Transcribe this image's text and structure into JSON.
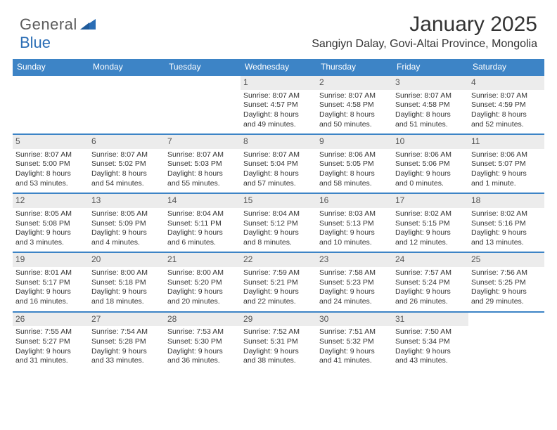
{
  "logo": {
    "text_part1": "General",
    "text_part2": "Blue",
    "color_gray": "#5b5b5b",
    "color_blue": "#2a6db5"
  },
  "title": "January 2025",
  "location": "Sangiyn Dalay, Govi-Altai Province, Mongolia",
  "colors": {
    "header_bg": "#3d84c6",
    "header_text": "#ffffff",
    "daynum_bg": "#ececec",
    "border": "#3d84c6",
    "text": "#333333"
  },
  "day_headers": [
    "Sunday",
    "Monday",
    "Tuesday",
    "Wednesday",
    "Thursday",
    "Friday",
    "Saturday"
  ],
  "weeks": [
    [
      {
        "empty": true
      },
      {
        "empty": true
      },
      {
        "empty": true
      },
      {
        "day": "1",
        "sunrise": "8:07 AM",
        "sunset": "4:57 PM",
        "daylight1": "Daylight: 8 hours",
        "daylight2": "and 49 minutes."
      },
      {
        "day": "2",
        "sunrise": "8:07 AM",
        "sunset": "4:58 PM",
        "daylight1": "Daylight: 8 hours",
        "daylight2": "and 50 minutes."
      },
      {
        "day": "3",
        "sunrise": "8:07 AM",
        "sunset": "4:58 PM",
        "daylight1": "Daylight: 8 hours",
        "daylight2": "and 51 minutes."
      },
      {
        "day": "4",
        "sunrise": "8:07 AM",
        "sunset": "4:59 PM",
        "daylight1": "Daylight: 8 hours",
        "daylight2": "and 52 minutes."
      }
    ],
    [
      {
        "day": "5",
        "sunrise": "8:07 AM",
        "sunset": "5:00 PM",
        "daylight1": "Daylight: 8 hours",
        "daylight2": "and 53 minutes."
      },
      {
        "day": "6",
        "sunrise": "8:07 AM",
        "sunset": "5:02 PM",
        "daylight1": "Daylight: 8 hours",
        "daylight2": "and 54 minutes."
      },
      {
        "day": "7",
        "sunrise": "8:07 AM",
        "sunset": "5:03 PM",
        "daylight1": "Daylight: 8 hours",
        "daylight2": "and 55 minutes."
      },
      {
        "day": "8",
        "sunrise": "8:07 AM",
        "sunset": "5:04 PM",
        "daylight1": "Daylight: 8 hours",
        "daylight2": "and 57 minutes."
      },
      {
        "day": "9",
        "sunrise": "8:06 AM",
        "sunset": "5:05 PM",
        "daylight1": "Daylight: 8 hours",
        "daylight2": "and 58 minutes."
      },
      {
        "day": "10",
        "sunrise": "8:06 AM",
        "sunset": "5:06 PM",
        "daylight1": "Daylight: 9 hours",
        "daylight2": "and 0 minutes."
      },
      {
        "day": "11",
        "sunrise": "8:06 AM",
        "sunset": "5:07 PM",
        "daylight1": "Daylight: 9 hours",
        "daylight2": "and 1 minute."
      }
    ],
    [
      {
        "day": "12",
        "sunrise": "8:05 AM",
        "sunset": "5:08 PM",
        "daylight1": "Daylight: 9 hours",
        "daylight2": "and 3 minutes."
      },
      {
        "day": "13",
        "sunrise": "8:05 AM",
        "sunset": "5:09 PM",
        "daylight1": "Daylight: 9 hours",
        "daylight2": "and 4 minutes."
      },
      {
        "day": "14",
        "sunrise": "8:04 AM",
        "sunset": "5:11 PM",
        "daylight1": "Daylight: 9 hours",
        "daylight2": "and 6 minutes."
      },
      {
        "day": "15",
        "sunrise": "8:04 AM",
        "sunset": "5:12 PM",
        "daylight1": "Daylight: 9 hours",
        "daylight2": "and 8 minutes."
      },
      {
        "day": "16",
        "sunrise": "8:03 AM",
        "sunset": "5:13 PM",
        "daylight1": "Daylight: 9 hours",
        "daylight2": "and 10 minutes."
      },
      {
        "day": "17",
        "sunrise": "8:02 AM",
        "sunset": "5:15 PM",
        "daylight1": "Daylight: 9 hours",
        "daylight2": "and 12 minutes."
      },
      {
        "day": "18",
        "sunrise": "8:02 AM",
        "sunset": "5:16 PM",
        "daylight1": "Daylight: 9 hours",
        "daylight2": "and 13 minutes."
      }
    ],
    [
      {
        "day": "19",
        "sunrise": "8:01 AM",
        "sunset": "5:17 PM",
        "daylight1": "Daylight: 9 hours",
        "daylight2": "and 16 minutes."
      },
      {
        "day": "20",
        "sunrise": "8:00 AM",
        "sunset": "5:18 PM",
        "daylight1": "Daylight: 9 hours",
        "daylight2": "and 18 minutes."
      },
      {
        "day": "21",
        "sunrise": "8:00 AM",
        "sunset": "5:20 PM",
        "daylight1": "Daylight: 9 hours",
        "daylight2": "and 20 minutes."
      },
      {
        "day": "22",
        "sunrise": "7:59 AM",
        "sunset": "5:21 PM",
        "daylight1": "Daylight: 9 hours",
        "daylight2": "and 22 minutes."
      },
      {
        "day": "23",
        "sunrise": "7:58 AM",
        "sunset": "5:23 PM",
        "daylight1": "Daylight: 9 hours",
        "daylight2": "and 24 minutes."
      },
      {
        "day": "24",
        "sunrise": "7:57 AM",
        "sunset": "5:24 PM",
        "daylight1": "Daylight: 9 hours",
        "daylight2": "and 26 minutes."
      },
      {
        "day": "25",
        "sunrise": "7:56 AM",
        "sunset": "5:25 PM",
        "daylight1": "Daylight: 9 hours",
        "daylight2": "and 29 minutes."
      }
    ],
    [
      {
        "day": "26",
        "sunrise": "7:55 AM",
        "sunset": "5:27 PM",
        "daylight1": "Daylight: 9 hours",
        "daylight2": "and 31 minutes."
      },
      {
        "day": "27",
        "sunrise": "7:54 AM",
        "sunset": "5:28 PM",
        "daylight1": "Daylight: 9 hours",
        "daylight2": "and 33 minutes."
      },
      {
        "day": "28",
        "sunrise": "7:53 AM",
        "sunset": "5:30 PM",
        "daylight1": "Daylight: 9 hours",
        "daylight2": "and 36 minutes."
      },
      {
        "day": "29",
        "sunrise": "7:52 AM",
        "sunset": "5:31 PM",
        "daylight1": "Daylight: 9 hours",
        "daylight2": "and 38 minutes."
      },
      {
        "day": "30",
        "sunrise": "7:51 AM",
        "sunset": "5:32 PM",
        "daylight1": "Daylight: 9 hours",
        "daylight2": "and 41 minutes."
      },
      {
        "day": "31",
        "sunrise": "7:50 AM",
        "sunset": "5:34 PM",
        "daylight1": "Daylight: 9 hours",
        "daylight2": "and 43 minutes."
      },
      {
        "empty": true
      }
    ]
  ],
  "labels": {
    "sunrise_prefix": "Sunrise: ",
    "sunset_prefix": "Sunset: "
  }
}
